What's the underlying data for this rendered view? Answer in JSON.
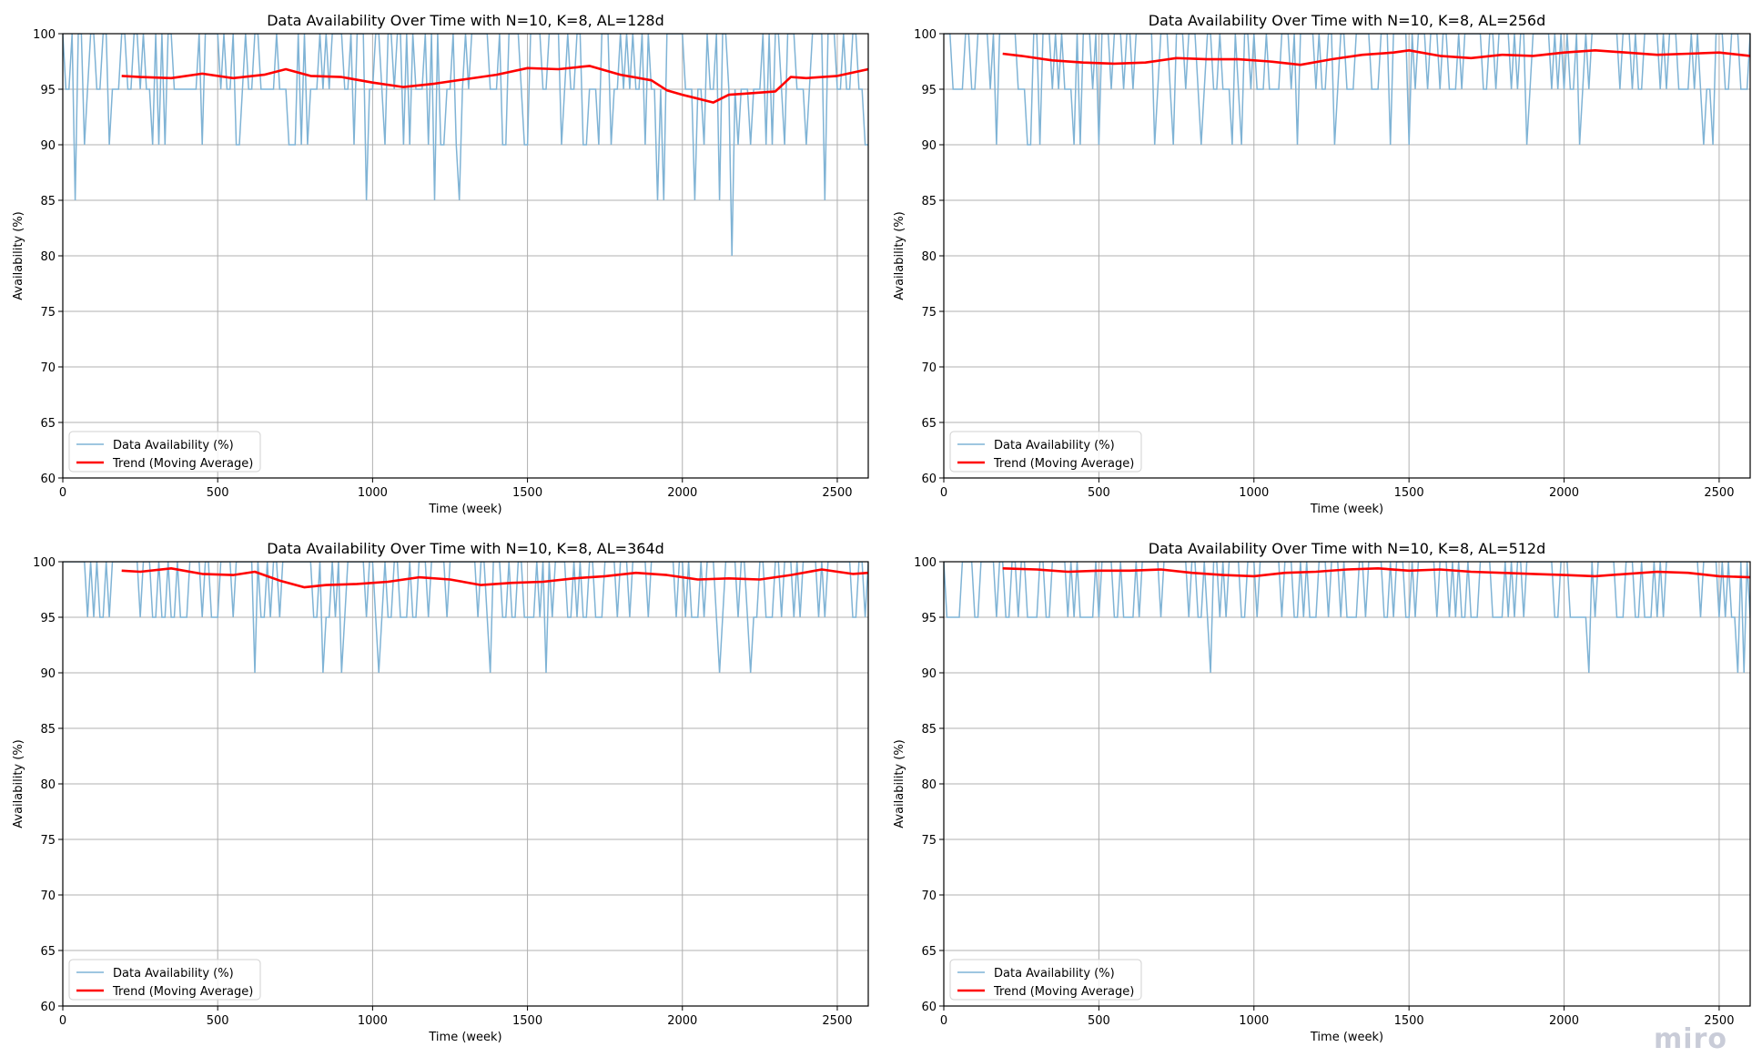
{
  "watermark": "miro",
  "chart_data": [
    {
      "type": "line",
      "title": "Data Availability Over Time with N=10, K=8, AL=128d",
      "xlabel": "Time (week)",
      "ylabel": "Availability (%)",
      "xlim": [
        0,
        2600
      ],
      "ylim": [
        60,
        100
      ],
      "xticks": [
        0,
        500,
        1000,
        1500,
        2000,
        2500
      ],
      "yticks": [
        60,
        65,
        70,
        75,
        80,
        85,
        90,
        95,
        100
      ],
      "grid": true,
      "legend_position": "lower-left",
      "series": [
        {
          "name": "Data Availability (%)",
          "color": "#7fb3d5",
          "style": "raw",
          "min": 80,
          "dips": [
            [
              40,
              85
            ],
            [
              980,
              85
            ],
            [
              1190,
              85
            ],
            [
              1270,
              85
            ],
            [
              1910,
              85
            ],
            [
              1940,
              85
            ],
            [
              2030,
              85
            ],
            [
              2120,
              85
            ],
            [
              2160,
              80
            ],
            [
              2450,
              85
            ]
          ]
        },
        {
          "name": "Trend (Moving Average)",
          "color": "#ff0000",
          "style": "trend",
          "x": [
            190,
            250,
            350,
            450,
            550,
            650,
            720,
            800,
            900,
            1000,
            1100,
            1200,
            1300,
            1400,
            1500,
            1600,
            1700,
            1800,
            1900,
            1950,
            2000,
            2100,
            2150,
            2200,
            2300,
            2350,
            2400,
            2500,
            2600
          ],
          "y": [
            96.2,
            96.1,
            96.0,
            96.4,
            96.0,
            96.3,
            96.8,
            96.2,
            96.1,
            95.6,
            95.2,
            95.5,
            95.9,
            96.3,
            96.9,
            96.8,
            97.1,
            96.3,
            95.8,
            94.9,
            94.5,
            93.8,
            94.5,
            94.6,
            94.8,
            96.1,
            96.0,
            96.2,
            96.8
          ]
        }
      ]
    },
    {
      "type": "line",
      "title": "Data Availability Over Time with N=10, K=8, AL=256d",
      "xlabel": "Time (week)",
      "ylabel": "Availability (%)",
      "xlim": [
        0,
        2600
      ],
      "ylim": [
        60,
        100
      ],
      "xticks": [
        0,
        500,
        1000,
        1500,
        2000,
        2500
      ],
      "yticks": [
        60,
        65,
        70,
        75,
        80,
        85,
        90,
        95,
        100
      ],
      "grid": true,
      "legend_position": "lower-left",
      "series": [
        {
          "name": "Data Availability (%)",
          "color": "#7fb3d5",
          "style": "raw",
          "min": 90,
          "dips": [
            [
              270,
              90
            ],
            [
              430,
              90
            ],
            [
              500,
              90
            ],
            [
              670,
              90
            ],
            [
              950,
              90
            ],
            [
              1140,
              90
            ],
            [
              1260,
              90
            ],
            [
              1490,
              90
            ],
            [
              1880,
              90
            ],
            [
              2470,
              90
            ]
          ]
        },
        {
          "name": "Trend (Moving Average)",
          "color": "#ff0000",
          "style": "trend",
          "x": [
            190,
            250,
            350,
            450,
            550,
            650,
            750,
            850,
            950,
            1050,
            1150,
            1250,
            1350,
            1450,
            1500,
            1600,
            1700,
            1800,
            1900,
            2000,
            2100,
            2200,
            2300,
            2400,
            2500,
            2600
          ],
          "y": [
            98.2,
            98.0,
            97.6,
            97.4,
            97.3,
            97.4,
            97.8,
            97.7,
            97.7,
            97.5,
            97.2,
            97.7,
            98.1,
            98.3,
            98.5,
            98.0,
            97.8,
            98.1,
            98.0,
            98.3,
            98.5,
            98.3,
            98.1,
            98.2,
            98.3,
            98.0
          ]
        }
      ]
    },
    {
      "type": "line",
      "title": "Data Availability Over Time with N=10, K=8, AL=364d",
      "xlabel": "Time (week)",
      "ylabel": "Availability (%)",
      "xlim": [
        0,
        2600
      ],
      "ylim": [
        60,
        100
      ],
      "xticks": [
        0,
        500,
        1000,
        1500,
        2000,
        2500
      ],
      "yticks": [
        60,
        65,
        70,
        75,
        80,
        85,
        90,
        95,
        100
      ],
      "grid": true,
      "legend_position": "lower-left",
      "series": [
        {
          "name": "Data Availability (%)",
          "color": "#7fb3d5",
          "style": "raw",
          "min": 90,
          "dips": [
            [
              610,
              90
            ],
            [
              830,
              90
            ],
            [
              890,
              90
            ],
            [
              1020,
              90
            ],
            [
              1380,
              90
            ],
            [
              1550,
              90
            ],
            [
              2120,
              90
            ],
            [
              2210,
              90
            ]
          ]
        },
        {
          "name": "Trend (Moving Average)",
          "color": "#ff0000",
          "style": "trend",
          "x": [
            190,
            250,
            350,
            450,
            550,
            620,
            700,
            780,
            850,
            950,
            1050,
            1150,
            1250,
            1350,
            1450,
            1550,
            1650,
            1750,
            1850,
            1950,
            2050,
            2150,
            2250,
            2350,
            2450,
            2550,
            2600
          ],
          "y": [
            99.2,
            99.1,
            99.4,
            98.9,
            98.8,
            99.1,
            98.3,
            97.7,
            97.9,
            98.0,
            98.2,
            98.6,
            98.4,
            97.9,
            98.1,
            98.2,
            98.5,
            98.7,
            99.0,
            98.8,
            98.4,
            98.5,
            98.4,
            98.8,
            99.3,
            98.9,
            99.0
          ]
        }
      ]
    },
    {
      "type": "line",
      "title": "Data Availability Over Time with N=10, K=8, AL=512d",
      "xlabel": "Time (week)",
      "ylabel": "Availability (%)",
      "xlim": [
        0,
        2600
      ],
      "ylim": [
        60,
        100
      ],
      "xticks": [
        0,
        500,
        1000,
        1500,
        2000,
        2500
      ],
      "yticks": [
        60,
        65,
        70,
        75,
        80,
        85,
        90,
        95,
        100
      ],
      "grid": true,
      "legend_position": "lower-left",
      "series": [
        {
          "name": "Data Availability (%)",
          "color": "#7fb3d5",
          "style": "raw",
          "min": 90,
          "dips": [
            [
              860,
              90
            ],
            [
              2080,
              90
            ],
            [
              2550,
              90
            ],
            [
              2580,
              90
            ]
          ]
        },
        {
          "name": "Trend (Moving Average)",
          "color": "#ff0000",
          "style": "trend",
          "x": [
            190,
            300,
            400,
            500,
            600,
            700,
            800,
            900,
            1000,
            1100,
            1200,
            1300,
            1400,
            1500,
            1600,
            1700,
            1800,
            1900,
            2000,
            2100,
            2200,
            2300,
            2400,
            2500,
            2600
          ],
          "y": [
            99.4,
            99.3,
            99.1,
            99.2,
            99.2,
            99.3,
            99.0,
            98.8,
            98.7,
            99.0,
            99.1,
            99.3,
            99.4,
            99.2,
            99.3,
            99.1,
            99.0,
            98.9,
            98.8,
            98.7,
            98.9,
            99.1,
            99.0,
            98.7,
            98.6
          ]
        }
      ]
    }
  ]
}
